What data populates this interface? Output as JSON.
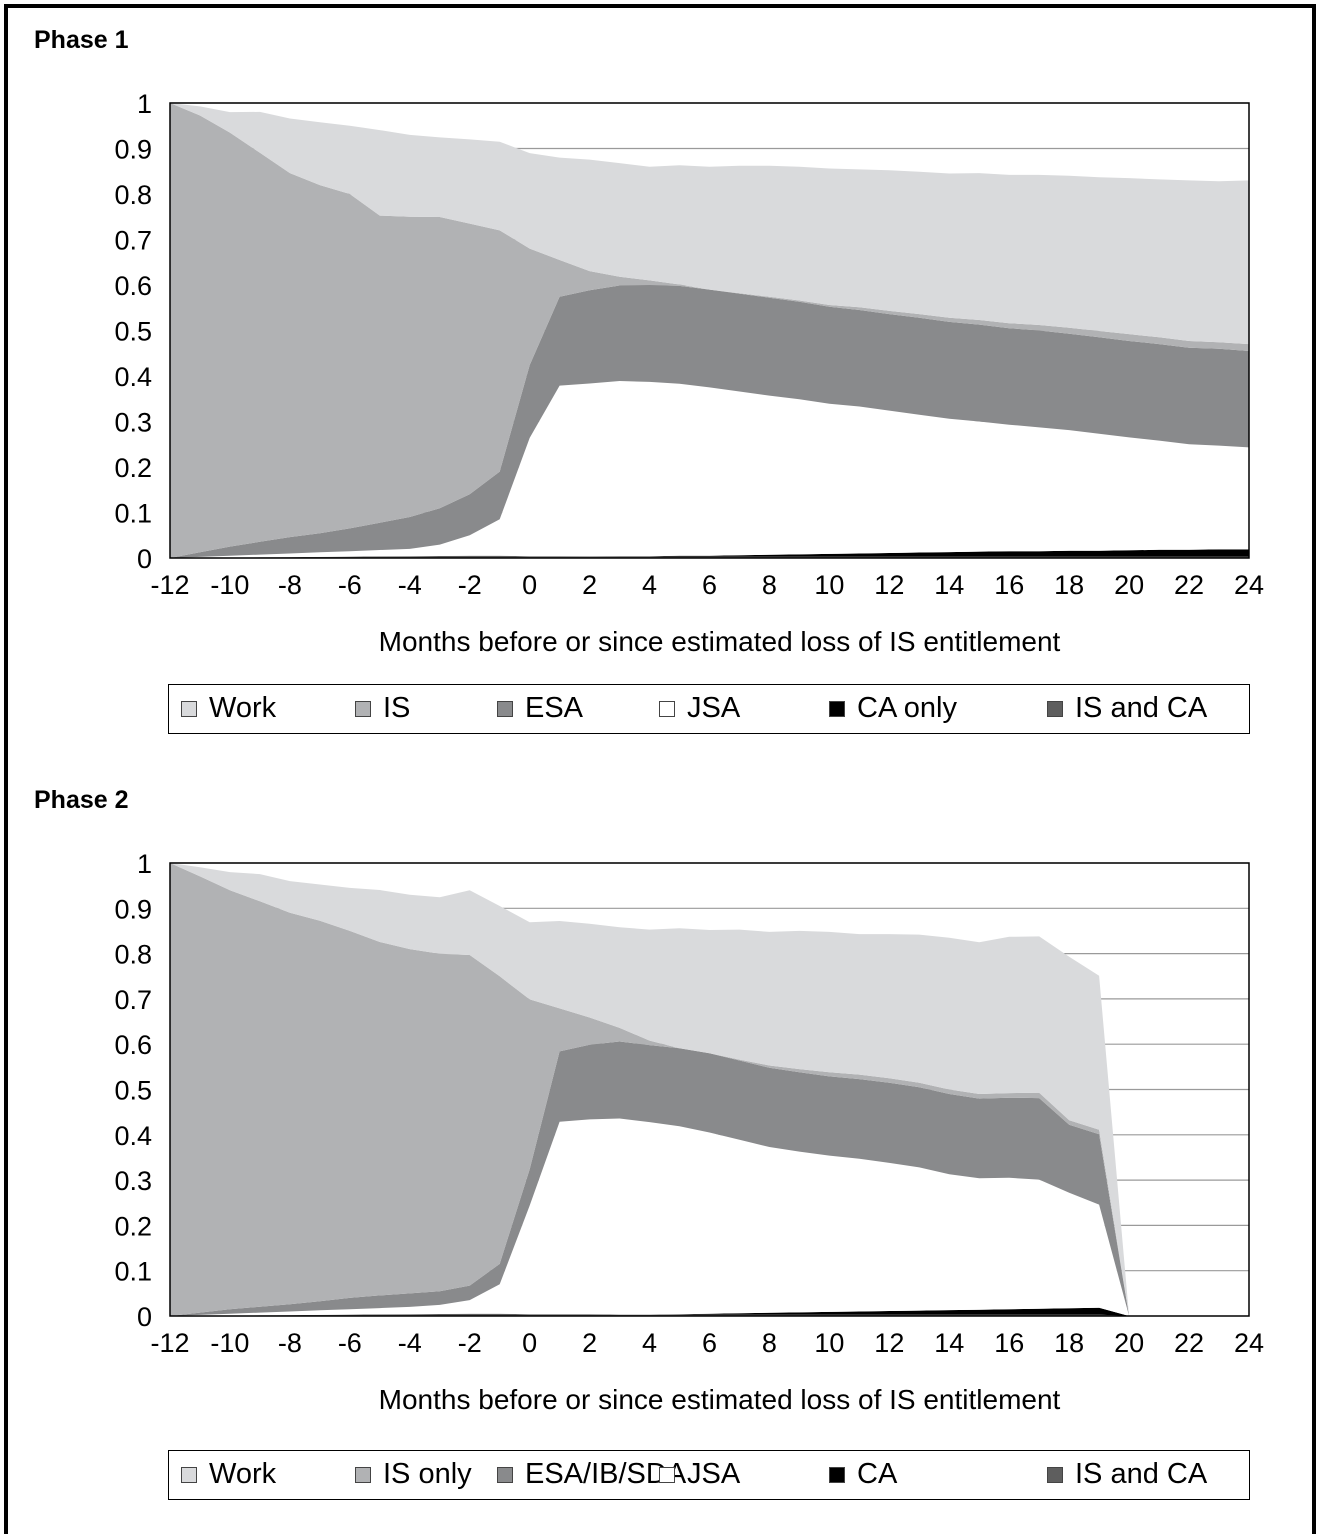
{
  "chart_data": [
    {
      "id": "phase1",
      "type": "area",
      "title": "Phase 1",
      "xlabel": "Months before or since estimated loss of IS entitlement",
      "ylabel": "",
      "xlim": [
        -12,
        24
      ],
      "ylim": [
        0,
        1
      ],
      "x_ticks": [
        -12,
        -10,
        -8,
        -6,
        -4,
        -2,
        0,
        2,
        4,
        6,
        8,
        10,
        12,
        14,
        16,
        18,
        20,
        22,
        24
      ],
      "y_ticks": [
        0,
        0.1,
        0.2,
        0.3,
        0.4,
        0.5,
        0.6,
        0.7,
        0.8,
        0.9,
        1
      ],
      "grid": "horizontal",
      "stacked": true,
      "x": [
        -12,
        -11,
        -10,
        -9,
        -8,
        -7,
        -6,
        -5,
        -4,
        -3,
        -2,
        -1,
        0,
        1,
        2,
        3,
        4,
        5,
        6,
        7,
        8,
        9,
        10,
        11,
        12,
        13,
        14,
        15,
        16,
        17,
        18,
        19,
        20,
        21,
        22,
        23,
        24
      ],
      "series": [
        {
          "name": "IS and CA",
          "color": "#5e5e5e",
          "values": [
            0,
            0.0005,
            0.001,
            0.0015,
            0.002,
            0.0025,
            0.003,
            0.0035,
            0.004,
            0.0045,
            0.005,
            0.005,
            0.004,
            0.004,
            0.0035,
            0.003,
            0.003,
            0.003,
            0.003,
            0.003,
            0.003,
            0.003,
            0.003,
            0.003,
            0.003,
            0.003,
            0.003,
            0.003,
            0.003,
            0.003,
            0.003,
            0.003,
            0.003,
            0.003,
            0.003,
            0.003,
            0.003
          ]
        },
        {
          "name": "CA only",
          "color": "#000000",
          "values": [
            0,
            0,
            0,
            0,
            0,
            0,
            0,
            0,
            0,
            0,
            0,
            0,
            0,
            0,
            0,
            0.001,
            0.001,
            0.002,
            0.002,
            0.003,
            0.004,
            0.005,
            0.006,
            0.007,
            0.008,
            0.009,
            0.01,
            0.011,
            0.012,
            0.012,
            0.013,
            0.013,
            0.014,
            0.015,
            0.015,
            0.016,
            0.016
          ]
        },
        {
          "name": "JSA",
          "color": "#ffffff",
          "values": [
            0,
            0.002,
            0.004,
            0.006,
            0.008,
            0.01,
            0.012,
            0.014,
            0.016,
            0.025,
            0.045,
            0.08,
            0.26,
            0.375,
            0.38,
            0.385,
            0.383,
            0.378,
            0.37,
            0.36,
            0.35,
            0.341,
            0.33,
            0.323,
            0.313,
            0.303,
            0.293,
            0.286,
            0.278,
            0.272,
            0.265,
            0.257,
            0.248,
            0.24,
            0.232,
            0.228,
            0.224
          ]
        },
        {
          "name": "ESA",
          "color": "#898a8c",
          "values": [
            0,
            0.01,
            0.02,
            0.028,
            0.036,
            0.042,
            0.05,
            0.06,
            0.07,
            0.08,
            0.09,
            0.105,
            0.16,
            0.195,
            0.205,
            0.21,
            0.213,
            0.215,
            0.215,
            0.215,
            0.215,
            0.214,
            0.213,
            0.212,
            0.212,
            0.213,
            0.213,
            0.213,
            0.212,
            0.213,
            0.212,
            0.212,
            0.212,
            0.212,
            0.212,
            0.213,
            0.212
          ]
        },
        {
          "name": "IS",
          "color": "#b1b2b4",
          "values": [
            1,
            0.96,
            0.91,
            0.855,
            0.8,
            0.765,
            0.735,
            0.675,
            0.66,
            0.64,
            0.595,
            0.53,
            0.256,
            0.081,
            0.042,
            0.019,
            0.01,
            0.003,
            0.0,
            0.001,
            0.002,
            0.003,
            0.004,
            0.006,
            0.007,
            0.008,
            0.009,
            0.01,
            0.011,
            0.012,
            0.013,
            0.014,
            0.015,
            0.015,
            0.015,
            0.014,
            0.015
          ]
        },
        {
          "name": "Work",
          "color": "#d9dadc",
          "values": [
            0,
            0.02,
            0.045,
            0.09,
            0.12,
            0.138,
            0.15,
            0.188,
            0.18,
            0.175,
            0.185,
            0.195,
            0.21,
            0.225,
            0.245,
            0.25,
            0.25,
            0.262,
            0.27,
            0.28,
            0.288,
            0.294,
            0.3,
            0.303,
            0.309,
            0.313,
            0.317,
            0.323,
            0.326,
            0.33,
            0.334,
            0.338,
            0.343,
            0.347,
            0.353,
            0.354,
            0.36
          ]
        }
      ],
      "legend_order": [
        "Work",
        "IS",
        "ESA",
        "JSA",
        "CA only",
        "IS and CA"
      ],
      "legend_position": "bottom"
    },
    {
      "id": "phase2",
      "type": "area",
      "title": "Phase 2",
      "xlabel": "Months before or since estimated loss of IS entitlement",
      "ylabel": "",
      "xlim": [
        -12,
        24
      ],
      "ylim": [
        0,
        1
      ],
      "x_ticks": [
        -12,
        -10,
        -8,
        -6,
        -4,
        -2,
        0,
        2,
        4,
        6,
        8,
        10,
        12,
        14,
        16,
        18,
        20,
        22,
        24
      ],
      "y_ticks": [
        0,
        0.1,
        0.2,
        0.3,
        0.4,
        0.5,
        0.6,
        0.7,
        0.8,
        0.9,
        1
      ],
      "grid": "horizontal",
      "stacked": true,
      "x": [
        -12,
        -11,
        -10,
        -9,
        -8,
        -7,
        -6,
        -5,
        -4,
        -3,
        -2,
        -1,
        0,
        1,
        2,
        3,
        4,
        5,
        6,
        7,
        8,
        9,
        10,
        11,
        12,
        13,
        14,
        15,
        16,
        17,
        18,
        19,
        20,
        21,
        22,
        23,
        24
      ],
      "series": [
        {
          "name": "IS and CA",
          "color": "#5e5e5e",
          "values": [
            0,
            0.0005,
            0.001,
            0.0015,
            0.002,
            0.0025,
            0.003,
            0.0035,
            0.004,
            0.0045,
            0.005,
            0.005,
            0.004,
            0.004,
            0.004,
            0.003,
            0.003,
            0.003,
            0.003,
            0.003,
            0.003,
            0.003,
            0.003,
            0.003,
            0.003,
            0.003,
            0.003,
            0.003,
            0.003,
            0.003,
            0.003,
            0.003,
            0,
            0,
            0,
            0,
            0
          ]
        },
        {
          "name": "CA",
          "color": "#000000",
          "values": [
            0,
            0,
            0,
            0,
            0,
            0,
            0,
            0,
            0,
            0,
            0,
            0,
            0,
            0,
            0,
            0,
            0,
            0.001,
            0.002,
            0.003,
            0.004,
            0.005,
            0.006,
            0.007,
            0.008,
            0.009,
            0.01,
            0.011,
            0.012,
            0.013,
            0.014,
            0.015,
            0,
            0,
            0,
            0,
            0
          ]
        },
        {
          "name": "JSA",
          "color": "#ffffff",
          "values": [
            0,
            0.002,
            0.004,
            0.006,
            0.008,
            0.01,
            0.012,
            0.014,
            0.016,
            0.02,
            0.03,
            0.065,
            0.24,
            0.425,
            0.43,
            0.433,
            0.425,
            0.415,
            0.4,
            0.383,
            0.366,
            0.355,
            0.345,
            0.337,
            0.327,
            0.316,
            0.3,
            0.29,
            0.29,
            0.285,
            0.255,
            0.228,
            0,
            0,
            0,
            0,
            0
          ]
        },
        {
          "name": "ESA/IB/SDA",
          "color": "#898a8c",
          "values": [
            0,
            0.005,
            0.01,
            0.013,
            0.016,
            0.02,
            0.025,
            0.028,
            0.03,
            0.03,
            0.032,
            0.045,
            0.08,
            0.155,
            0.165,
            0.17,
            0.17,
            0.172,
            0.175,
            0.175,
            0.175,
            0.175,
            0.175,
            0.176,
            0.177,
            0.177,
            0.177,
            0.176,
            0.177,
            0.18,
            0.15,
            0.155,
            0,
            0,
            0,
            0,
            0
          ]
        },
        {
          "name": "IS only",
          "color": "#b1b2b4",
          "values": [
            1,
            0.963,
            0.925,
            0.895,
            0.864,
            0.84,
            0.81,
            0.78,
            0.76,
            0.745,
            0.73,
            0.635,
            0.375,
            0.095,
            0.06,
            0.03,
            0.01,
            0.0,
            0.0,
            0.002,
            0.005,
            0.007,
            0.009,
            0.01,
            0.01,
            0.01,
            0.01,
            0.01,
            0.01,
            0.012,
            0.01,
            0.01,
            0,
            0,
            0,
            0,
            0
          ]
        },
        {
          "name": "Work",
          "color": "#d9dadc",
          "values": [
            0,
            0.02,
            0.04,
            0.06,
            0.07,
            0.08,
            0.095,
            0.115,
            0.12,
            0.125,
            0.143,
            0.155,
            0.17,
            0.193,
            0.207,
            0.222,
            0.245,
            0.265,
            0.272,
            0.287,
            0.295,
            0.305,
            0.31,
            0.31,
            0.318,
            0.327,
            0.335,
            0.335,
            0.345,
            0.345,
            0.361,
            0.34,
            0,
            0,
            0,
            0,
            0
          ]
        }
      ],
      "legend_order": [
        "Work",
        "IS only",
        "ESA/IB/SDA",
        "JSA",
        "CA",
        "IS and CA"
      ],
      "legend_position": "bottom"
    }
  ]
}
